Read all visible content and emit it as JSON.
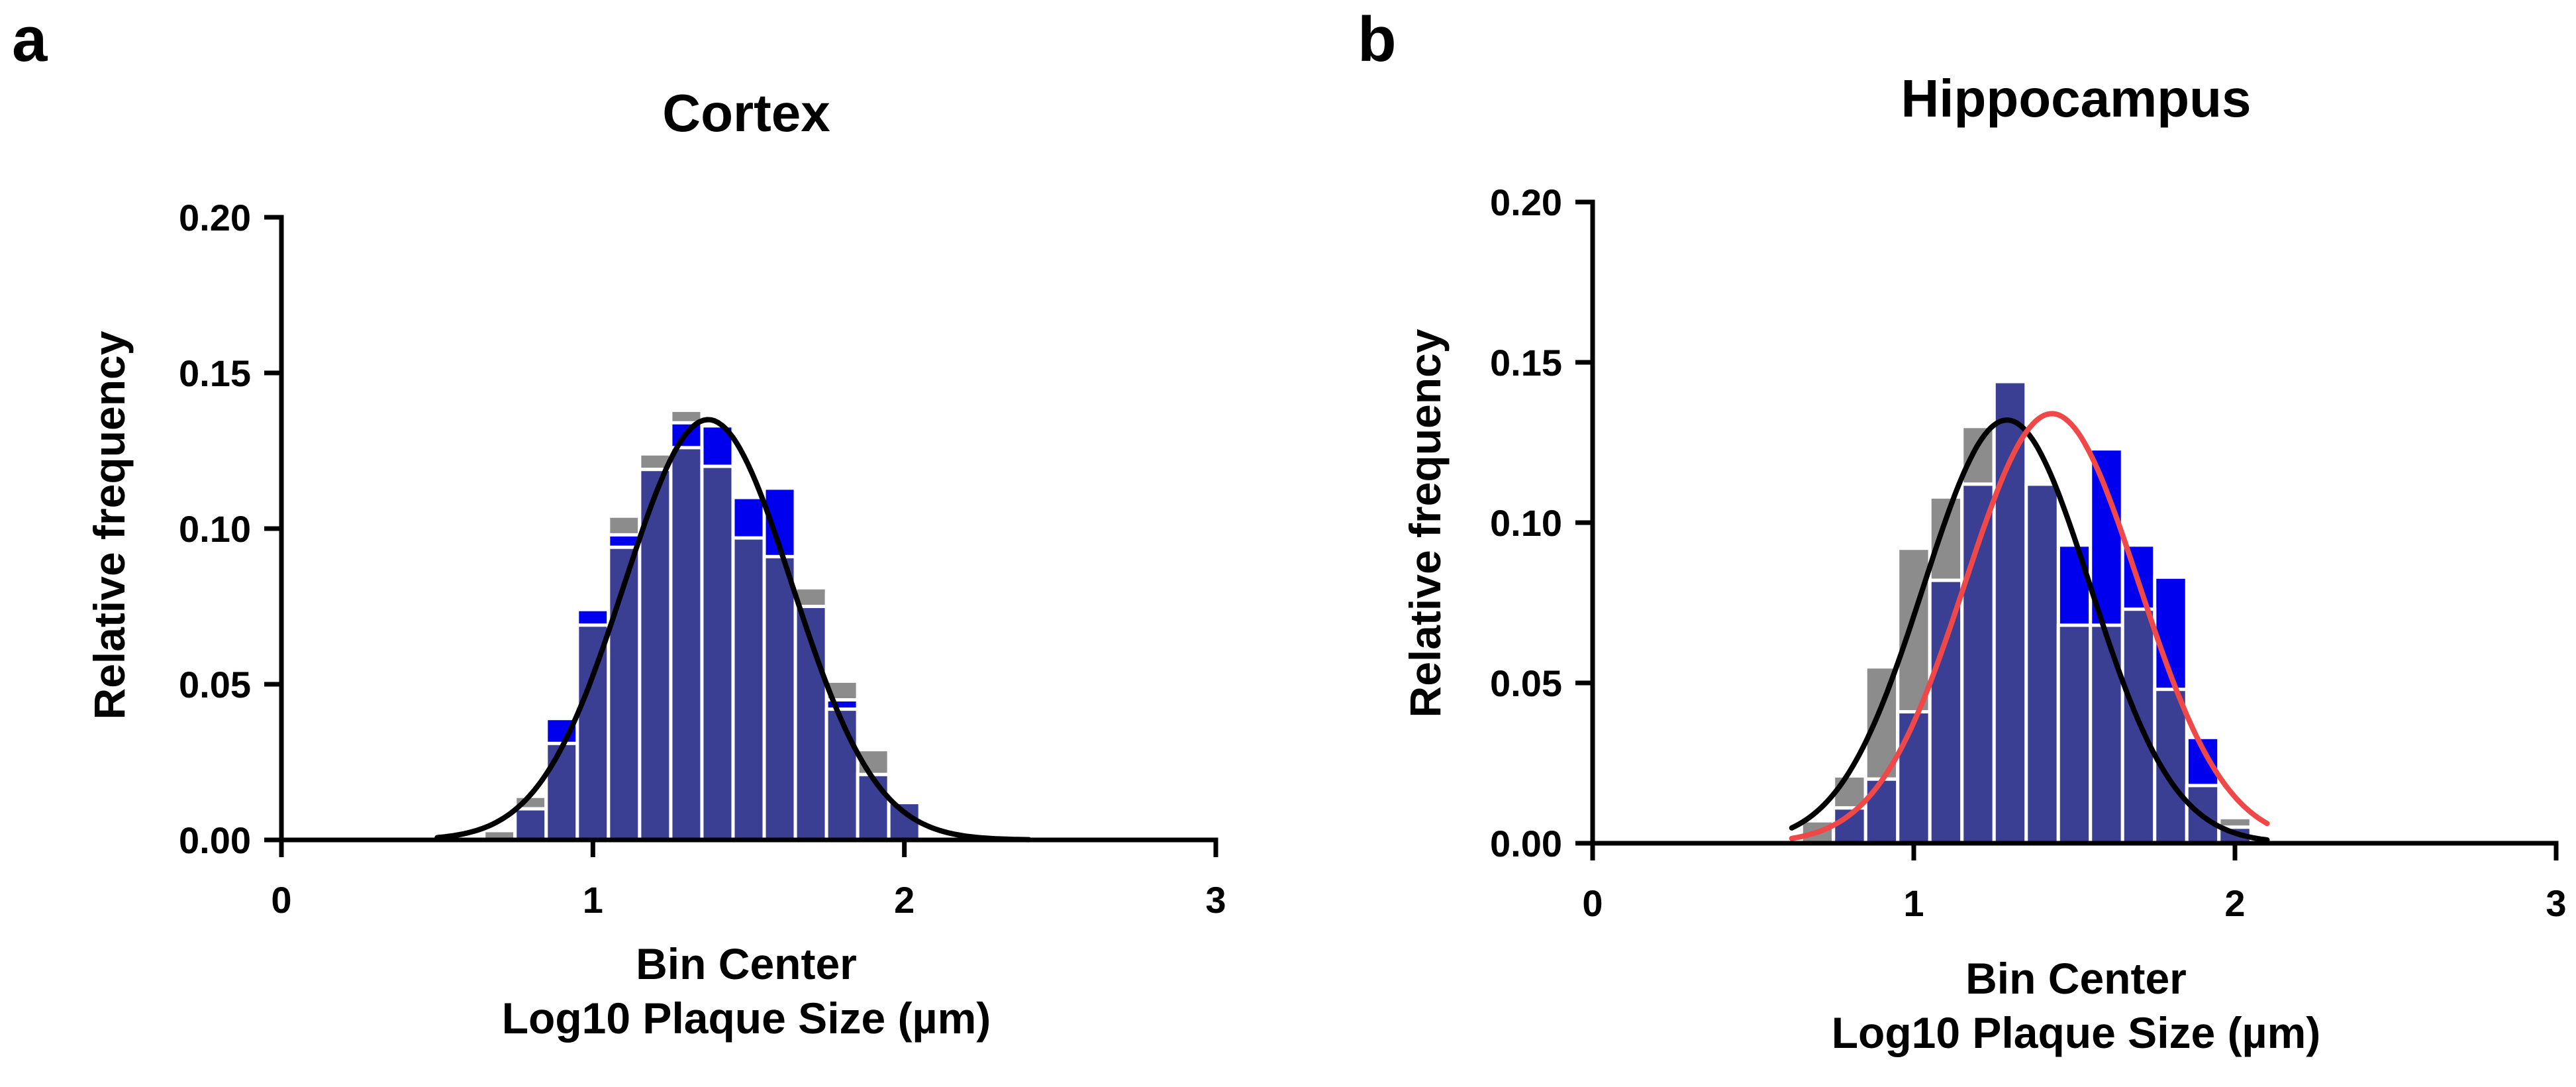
{
  "chart_data": [
    {
      "type": "bar",
      "panel_label": "a",
      "title": "Cortex",
      "xlabel": [
        "Bin Center",
        "Log10 Plaque Size  (µm)"
      ],
      "ylabel": "Relative frequency",
      "xlim": [
        0,
        3
      ],
      "ylim": [
        0,
        0.2
      ],
      "xticks": [
        0,
        1,
        2,
        3
      ],
      "xtick_labels": [
        "0",
        "1",
        "2",
        "3"
      ],
      "yticks": [
        0,
        0.05,
        0.1,
        0.15,
        0.2
      ],
      "ytick_labels": [
        "0.00",
        "0.05",
        "0.10",
        "0.15",
        "0.20"
      ],
      "bin_width": 0.1,
      "bin_centers": [
        0.7,
        0.8,
        0.9,
        1.0,
        1.1,
        1.2,
        1.3,
        1.4,
        1.5,
        1.6,
        1.7,
        1.8,
        1.9,
        2.0
      ],
      "series": [
        {
          "color": "#8c8c8c",
          "values": [
            0.003,
            0.014,
            0.033,
            0.069,
            0.104,
            0.124,
            0.138,
            0.125,
            0.102,
            0.093,
            0.081,
            0.051,
            0.029,
            0.012
          ]
        },
        {
          "color": "#0000ee",
          "values": [
            0.0,
            0.01,
            0.039,
            0.074,
            0.098,
            0.119,
            0.134,
            0.133,
            0.11,
            0.113,
            0.075,
            0.045,
            0.021,
            0.012
          ]
        },
        {
          "color": "#3b3f93",
          "values": [
            0.0,
            0.01,
            0.031,
            0.069,
            0.094,
            0.119,
            0.126,
            0.12,
            0.097,
            0.091,
            0.075,
            0.042,
            0.021,
            0.012
          ]
        }
      ],
      "fit_curves": [
        {
          "color": "#000000",
          "amplitude": 0.135,
          "mean": 1.37,
          "sd": 0.27,
          "x_range": [
            0.5,
            2.4
          ]
        }
      ],
      "grid": false
    },
    {
      "type": "bar",
      "panel_label": "b",
      "title": "Hippocampus",
      "xlabel": [
        "Bin Center",
        "Log10 Plaque Size  (µm)"
      ],
      "ylabel": "Relative frequency",
      "xlim": [
        0,
        3
      ],
      "ylim": [
        0,
        0.2
      ],
      "xticks": [
        0,
        1,
        2,
        3
      ],
      "xtick_labels": [
        "0",
        "1",
        "2",
        "3"
      ],
      "yticks": [
        0,
        0.05,
        0.1,
        0.15,
        0.2
      ],
      "ytick_labels": [
        "0.00",
        "0.05",
        "0.10",
        "0.15",
        "0.20"
      ],
      "bin_width": 0.1,
      "bin_centers": [
        0.7,
        0.8,
        0.9,
        1.0,
        1.1,
        1.2,
        1.3,
        1.4,
        1.5,
        1.6,
        1.7,
        1.8,
        1.9,
        2.0
      ],
      "series": [
        {
          "color": "#8c8c8c",
          "values": [
            0.007,
            0.021,
            0.055,
            0.092,
            0.108,
            0.13,
            0.135,
            0.09,
            0.075,
            0.072,
            0.053,
            0.03,
            0.013,
            0.008
          ]
        },
        {
          "color": "#0000ee",
          "values": [
            0.0,
            0.011,
            0.02,
            0.041,
            0.082,
            0.112,
            0.144,
            0.112,
            0.093,
            0.123,
            0.093,
            0.083,
            0.033,
            0.005
          ]
        },
        {
          "color": "#3b3f93",
          "values": [
            0.0,
            0.011,
            0.02,
            0.041,
            0.082,
            0.112,
            0.144,
            0.112,
            0.068,
            0.068,
            0.073,
            0.048,
            0.018,
            0.005
          ]
        }
      ],
      "fit_curves": [
        {
          "color": "#000000",
          "amplitude": 0.132,
          "mean": 1.29,
          "sd": 0.26,
          "x_range": [
            0.62,
            2.1
          ]
        },
        {
          "color": "#f04848",
          "amplitude": 0.134,
          "mean": 1.43,
          "sd": 0.27,
          "x_range": [
            0.62,
            2.1
          ]
        }
      ],
      "grid": false
    }
  ]
}
